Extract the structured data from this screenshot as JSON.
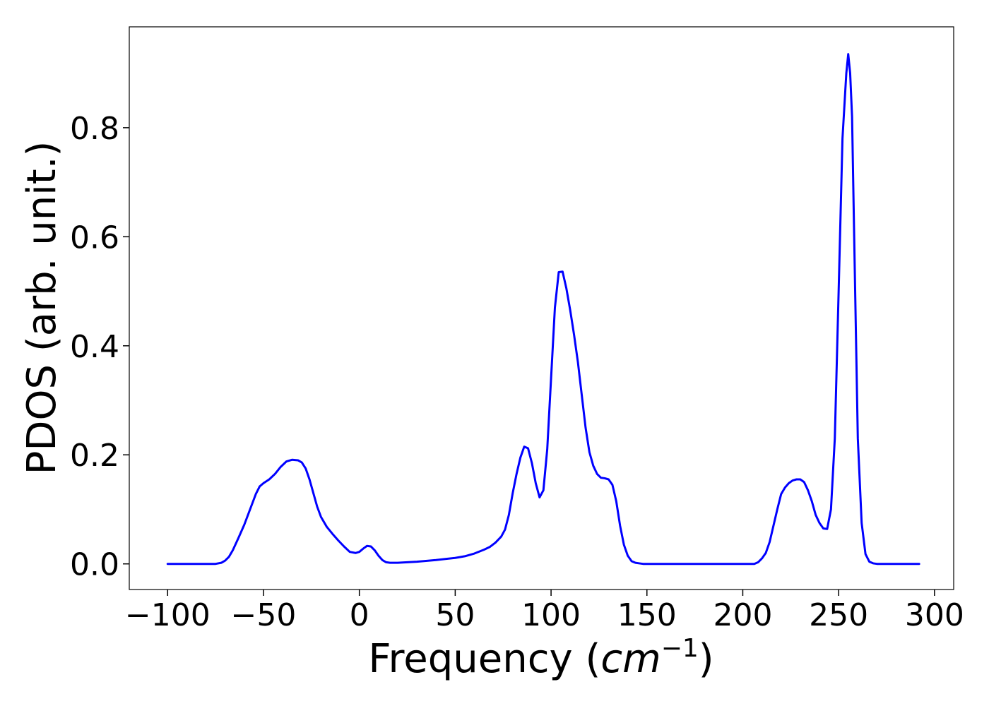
{
  "chart_data": {
    "type": "line",
    "title": "",
    "xlabel": "Frequency",
    "xlabel_unit": {
      "open": "(",
      "base": "cm",
      "exponent": "−1",
      "close": ")"
    },
    "ylabel": "PDOS (arb. unit.)",
    "xlim": [
      -120,
      310
    ],
    "ylim": [
      -0.047,
      0.985
    ],
    "grid": false,
    "legend": "none",
    "line_color": "#0000ff",
    "xticks": [
      {
        "value": -100,
        "label": "−100"
      },
      {
        "value": -50,
        "label": "−50"
      },
      {
        "value": 0,
        "label": "0"
      },
      {
        "value": 50,
        "label": "50"
      },
      {
        "value": 100,
        "label": "100"
      },
      {
        "value": 150,
        "label": "150"
      },
      {
        "value": 200,
        "label": "200"
      },
      {
        "value": 250,
        "label": "250"
      },
      {
        "value": 300,
        "label": "300"
      }
    ],
    "yticks": [
      {
        "value": 0.0,
        "label": "0.0"
      },
      {
        "value": 0.2,
        "label": "0.2"
      },
      {
        "value": 0.4,
        "label": "0.4"
      },
      {
        "value": 0.6,
        "label": "0.6"
      },
      {
        "value": 0.8,
        "label": "0.8"
      }
    ],
    "series": [
      {
        "x": [
          -100,
          -90,
          -80,
          -75,
          -72,
          -70,
          -68,
          -66,
          -63,
          -60,
          -57,
          -54,
          -52,
          -50,
          -47,
          -44,
          -41,
          -38,
          -35,
          -32,
          -30,
          -28,
          -26,
          -24,
          -22,
          -20,
          -17,
          -14,
          -11,
          -8,
          -5,
          -2,
          0,
          2,
          4,
          6,
          8,
          10,
          12,
          14,
          16,
          18,
          20,
          30,
          40,
          50,
          55,
          60,
          65,
          68,
          71,
          74,
          76,
          78,
          80,
          82,
          84,
          86,
          88,
          90,
          92,
          94,
          96,
          98,
          100,
          102,
          104,
          106,
          108,
          110,
          112,
          114,
          116,
          118,
          120,
          122,
          124,
          126,
          128,
          130,
          132,
          134,
          136,
          138,
          140,
          142,
          144,
          146,
          148,
          150,
          200,
          206,
          208,
          210,
          212,
          214,
          216,
          218,
          220,
          222,
          224,
          226,
          228,
          230,
          232,
          234,
          236,
          238,
          240,
          242,
          244,
          246,
          248,
          250,
          252,
          254,
          255,
          256,
          257,
          258,
          260,
          262,
          264,
          266,
          268,
          270,
          272,
          280,
          292
        ],
        "y": [
          0.0,
          0.0,
          0.0,
          0.0,
          0.002,
          0.006,
          0.013,
          0.025,
          0.048,
          0.072,
          0.1,
          0.128,
          0.142,
          0.148,
          0.155,
          0.165,
          0.178,
          0.188,
          0.191,
          0.19,
          0.186,
          0.175,
          0.155,
          0.13,
          0.105,
          0.086,
          0.068,
          0.055,
          0.043,
          0.032,
          0.022,
          0.02,
          0.022,
          0.028,
          0.033,
          0.032,
          0.025,
          0.015,
          0.007,
          0.003,
          0.002,
          0.002,
          0.002,
          0.004,
          0.007,
          0.011,
          0.014,
          0.019,
          0.026,
          0.031,
          0.039,
          0.05,
          0.063,
          0.09,
          0.13,
          0.165,
          0.195,
          0.215,
          0.212,
          0.185,
          0.148,
          0.122,
          0.135,
          0.21,
          0.34,
          0.47,
          0.535,
          0.536,
          0.505,
          0.465,
          0.42,
          0.37,
          0.31,
          0.25,
          0.205,
          0.18,
          0.165,
          0.158,
          0.157,
          0.155,
          0.145,
          0.115,
          0.07,
          0.035,
          0.015,
          0.005,
          0.002,
          0.001,
          0.0,
          0.0,
          0.0,
          0.0,
          0.003,
          0.01,
          0.02,
          0.04,
          0.07,
          0.1,
          0.128,
          0.14,
          0.148,
          0.153,
          0.155,
          0.155,
          0.15,
          0.135,
          0.115,
          0.09,
          0.075,
          0.065,
          0.064,
          0.1,
          0.23,
          0.5,
          0.78,
          0.9,
          0.935,
          0.9,
          0.82,
          0.62,
          0.23,
          0.075,
          0.018,
          0.004,
          0.001,
          0.0,
          0.0,
          0.0,
          0.0
        ]
      }
    ]
  }
}
